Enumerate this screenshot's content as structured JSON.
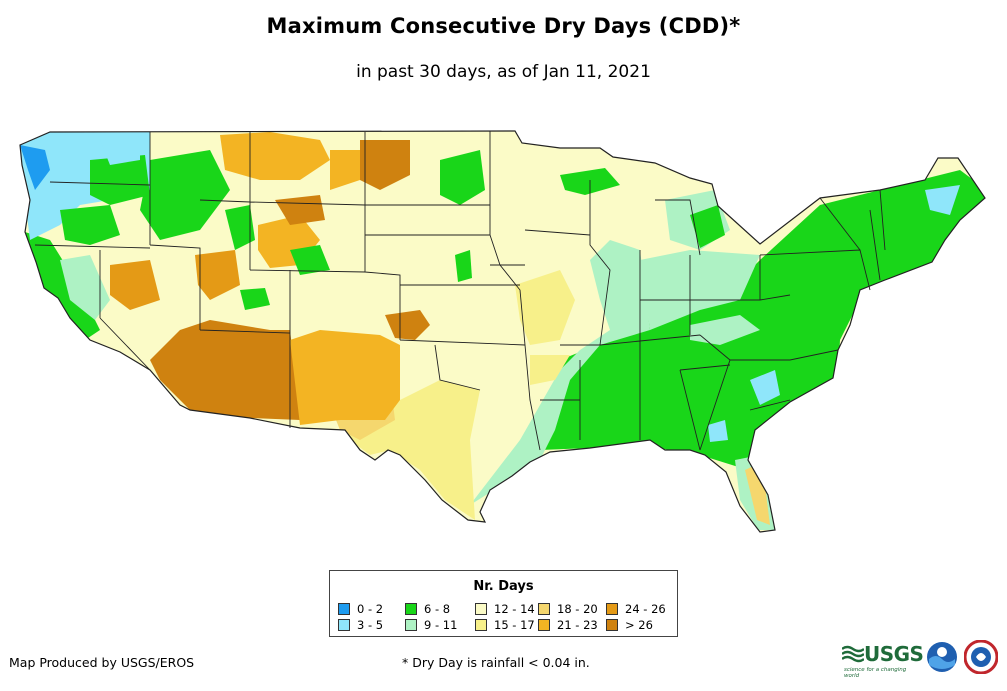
{
  "header": {
    "title": "Maximum Consecutive Dry Days (CDD)*",
    "subtitle": "in past 30 days, as of Jan 11, 2021"
  },
  "legend": {
    "title": "Nr. Days",
    "items": [
      {
        "label": "0 - 2",
        "color": "#1e9cf0"
      },
      {
        "label": "3 - 5",
        "color": "#8fe6fa"
      },
      {
        "label": "6 - 8",
        "color": "#19d619"
      },
      {
        "label": "9 - 11",
        "color": "#aef2c4"
      },
      {
        "label": "12 - 14",
        "color": "#fbfbc7"
      },
      {
        "label": "15 - 17",
        "color": "#f7f08a"
      },
      {
        "label": "18 - 20",
        "color": "#f5d76e"
      },
      {
        "label": "21 - 23",
        "color": "#f3b423"
      },
      {
        "label": "24 - 26",
        "color": "#e49a16"
      },
      {
        "label": "> 26",
        "color": "#cf8210"
      }
    ]
  },
  "footer": {
    "credit": "Map Produced by USGS/EROS",
    "footnote": "* Dry Day is rainfall < 0.04 in.",
    "logos": [
      {
        "name": "usgs-logo",
        "text": "USGS",
        "tagline": "science for a changing world"
      },
      {
        "name": "noaa-logo"
      },
      {
        "name": "national-weather-service-logo"
      }
    ]
  }
}
